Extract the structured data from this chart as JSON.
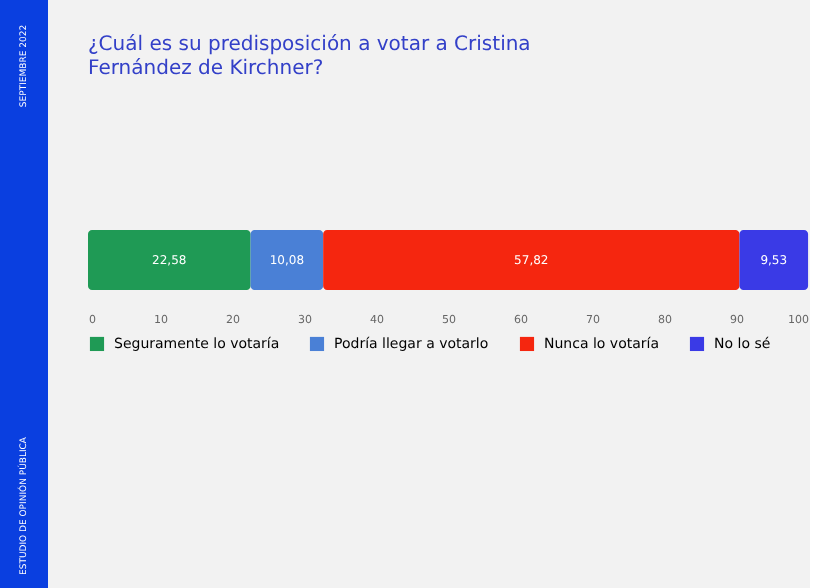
{
  "chart_data": {
    "type": "bar",
    "orientation": "horizontal",
    "stacked": true,
    "title": "¿Cuál es su predisposición a votar a Cristina Fernández de Kirchner?",
    "categories": [
      null
    ],
    "series": [
      {
        "name": "Seguramente lo votaría",
        "color": "#1f9a55",
        "values": [
          22.58
        ],
        "value_labels": [
          "22,58"
        ]
      },
      {
        "name": "Podría llegar a votarlo",
        "color": "#4a80d6",
        "values": [
          10.08
        ],
        "value_labels": [
          "10,08"
        ]
      },
      {
        "name": "Nunca lo votaría",
        "color": "#f5260f",
        "values": [
          57.82
        ],
        "value_labels": [
          "57,82"
        ]
      },
      {
        "name": "No lo sé",
        "color": "#3a3ae6",
        "values": [
          9.53
        ],
        "value_labels": [
          "9,53"
        ]
      }
    ],
    "xlim": [
      0,
      100
    ],
    "xticks": [
      0,
      10,
      20,
      30,
      40,
      50,
      60,
      70,
      80,
      90,
      100
    ],
    "grid": false,
    "legend": "bottom",
    "annotations": [
      "SEPTIEMBRE 2022",
      "ESTUDIO DE OPINIÓN PÚBLICA"
    ]
  }
}
